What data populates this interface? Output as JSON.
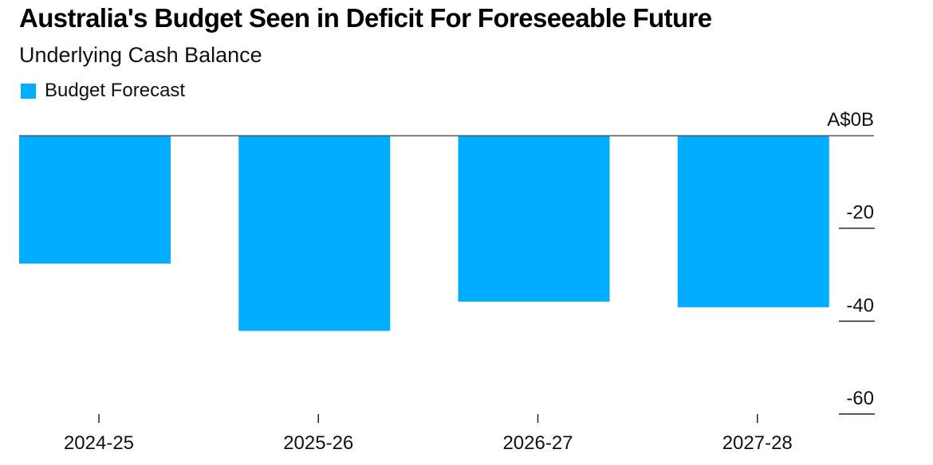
{
  "title": "Australia's Budget Seen in Deficit For Foreseeable Future",
  "subtitle": "Underlying Cash Balance",
  "chart_data": {
    "type": "bar",
    "categories": [
      "2024-25",
      "2025-26",
      "2026-27",
      "2027-28"
    ],
    "series": [
      {
        "name": "Budget Forecast",
        "values": [
          -27.6,
          -42.1,
          -35.8,
          -37.0
        ],
        "color": "#00adff"
      }
    ],
    "y_ticks": [
      {
        "value": 0,
        "label": "A$0B"
      },
      {
        "value": -20,
        "label": "-20"
      },
      {
        "value": -40,
        "label": "-40"
      },
      {
        "value": -60,
        "label": "-60"
      }
    ],
    "ylim": [
      -60,
      0
    ],
    "y_axis_side": "right",
    "legend_position": "top-left",
    "grid": false
  }
}
